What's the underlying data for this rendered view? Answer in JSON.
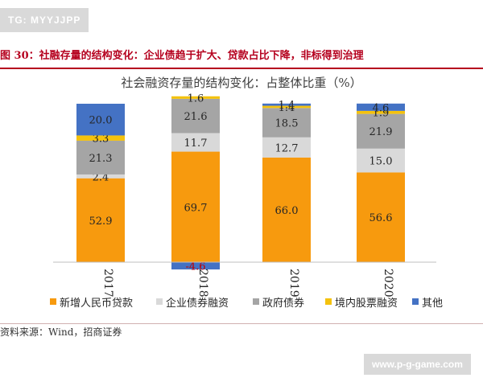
{
  "watermark_tag": "TG: MYYJJPP",
  "figure_title": "图 30：社融存量的结构变化：企业债趋于扩大、贷款占比下降，非标得到治理",
  "source_text": "资料来源：Wind，招商证券",
  "watermark_site": "www.p-g-game.com",
  "chart_data": {
    "type": "bar",
    "stacked": true,
    "title": "社会融资存量的结构变化：占整体比重（%）",
    "xlabel": "",
    "ylabel": "",
    "ylim": [
      -5,
      105
    ],
    "grid": false,
    "legend_position": "bottom",
    "categories": [
      "2017",
      "2018",
      "2019",
      "2020"
    ],
    "series": [
      {
        "name": "新增人民币贷款",
        "color": "#f79a0e",
        "values": [
          52.9,
          69.7,
          66.0,
          56.6
        ]
      },
      {
        "name": "企业债券融资",
        "color": "#d9d9d9",
        "values": [
          2.4,
          11.7,
          12.7,
          15.0
        ]
      },
      {
        "name": "政府债券",
        "color": "#a5a5a5",
        "values": [
          21.3,
          21.6,
          18.5,
          21.9
        ]
      },
      {
        "name": "境内股票融资",
        "color": "#f4c20d",
        "values": [
          3.3,
          1.6,
          1.4,
          1.9
        ]
      },
      {
        "name": "其他",
        "color": "#4472c4",
        "values": [
          20.0,
          -4.6,
          1.4,
          4.6
        ]
      }
    ]
  }
}
